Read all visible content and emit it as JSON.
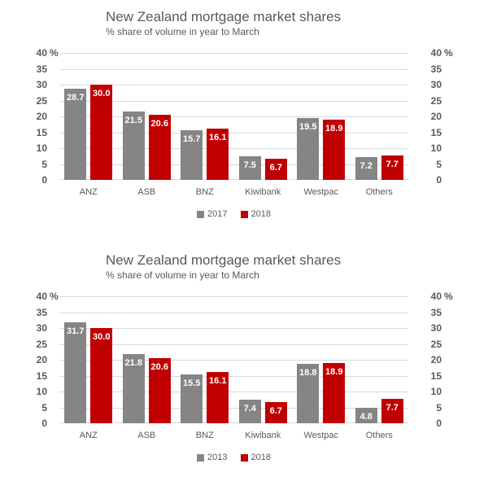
{
  "colors": {
    "text": "#595959",
    "gridline": "#d9d9d9",
    "value_label": "#ffffff",
    "bar_gray": "#858585",
    "bar_red": "#c00000"
  },
  "chart_data": [
    {
      "type": "bar",
      "title": "New Zealand mortgage market shares",
      "subtitle": "% share of volume in year to March",
      "categories": [
        "ANZ",
        "ASB",
        "BNZ",
        "Kiwibank",
        "Westpac",
        "Others"
      ],
      "series": [
        {
          "name": "2017",
          "color": "#858585",
          "values": [
            28.7,
            21.5,
            15.7,
            7.5,
            19.5,
            7.2
          ]
        },
        {
          "name": "2018",
          "color": "#c00000",
          "values": [
            30.0,
            20.6,
            16.1,
            6.7,
            18.9,
            7.7
          ]
        }
      ],
      "ylim": [
        0,
        40
      ],
      "yticks": [
        40,
        35,
        30,
        25,
        20,
        15,
        10,
        5,
        0
      ],
      "y_unit_suffix": "%",
      "grid": true,
      "axis_labels_both_sides": true,
      "legend_position": "bottom",
      "value_labels": "white, one decimal, inside top of bars"
    },
    {
      "type": "bar",
      "title": "New Zealand mortgage market shares",
      "subtitle": "% share of volume in year to March",
      "categories": [
        "ANZ",
        "ASB",
        "BNZ",
        "Kiwibank",
        "Westpac",
        "Others"
      ],
      "series": [
        {
          "name": "2013",
          "color": "#858585",
          "values": [
            31.7,
            21.8,
            15.5,
            7.4,
            18.8,
            4.8
          ]
        },
        {
          "name": "2018",
          "color": "#c00000",
          "values": [
            30.0,
            20.6,
            16.1,
            6.7,
            18.9,
            7.7
          ]
        }
      ],
      "ylim": [
        0,
        40
      ],
      "yticks": [
        40,
        35,
        30,
        25,
        20,
        15,
        10,
        5,
        0
      ],
      "y_unit_suffix": "%",
      "grid": true,
      "axis_labels_both_sides": true,
      "legend_position": "bottom",
      "value_labels": "white, one decimal, inside top of bars"
    }
  ]
}
